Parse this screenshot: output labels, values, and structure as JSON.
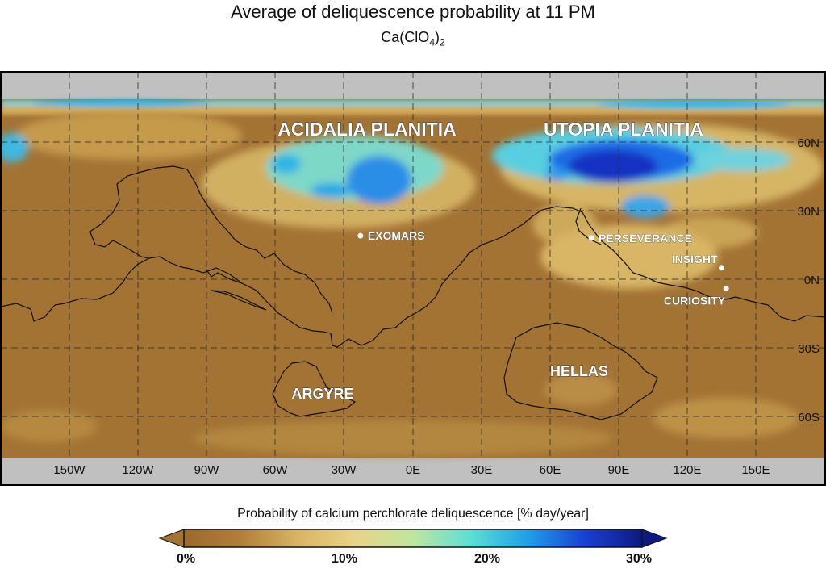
{
  "title": "Average of deliquescence probability at 11 PM",
  "subtitle": {
    "prefix": "Ca(ClO",
    "sub1": "4",
    "mid": ")",
    "sub2": "2"
  },
  "colorbar": {
    "label": "Probability of calcium perchlorate deliquescence [% day/year]",
    "ticks": [
      "0%",
      "10%",
      "20%",
      "30%"
    ],
    "range": [
      0,
      30
    ],
    "colors": [
      "#9a6a2a",
      "#b07f39",
      "#d9b564",
      "#e8d488",
      "#bfe6a0",
      "#5ce0d4",
      "#1ea0e8",
      "#1a3fd4",
      "#0d1a80"
    ]
  },
  "map": {
    "x_ticks": [
      "150W",
      "120W",
      "90W",
      "60W",
      "30W",
      "0E",
      "30E",
      "60E",
      "90E",
      "120E",
      "150E"
    ],
    "y_ticks": [
      "60N",
      "30N",
      "0N",
      "30S",
      "60S"
    ],
    "regions": [
      "ACIDALIA PLANITIA",
      "UTOPIA PLANITIA",
      "HELLAS",
      "ARGYRE"
    ],
    "sites": [
      {
        "name": "EXOMARS",
        "lon": -23,
        "lat": 19
      },
      {
        "name": "PERSEVERANCE",
        "lon": 78,
        "lat": 18
      },
      {
        "name": "INSIGHT",
        "lon": 135,
        "lat": 5
      },
      {
        "name": "CURIOSITY",
        "lon": 137,
        "lat": -4
      }
    ],
    "colors": {
      "base": "#a37334",
      "light": "#d4b060",
      "cyan": "#4ad6e4",
      "blue": "#1e5fe6",
      "deep": "#1a2fc8",
      "polar_mask": "#c0c0c0"
    }
  }
}
